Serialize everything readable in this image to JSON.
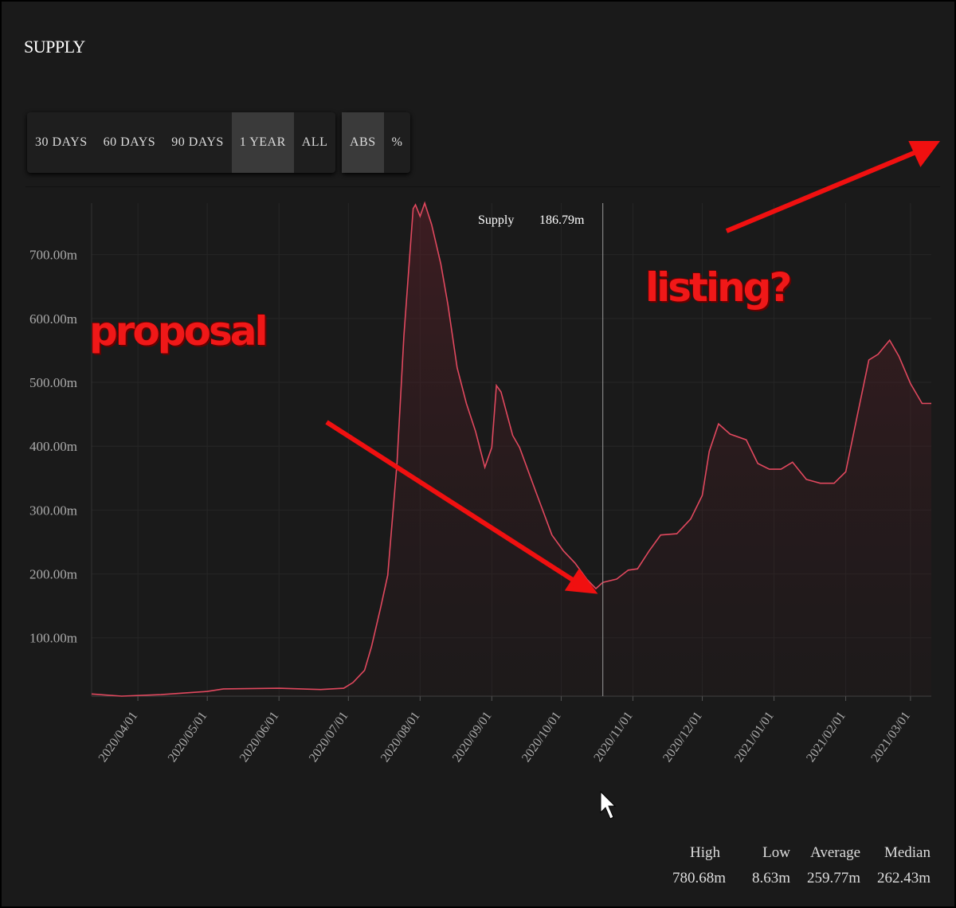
{
  "header": {
    "title": "SUPPLY"
  },
  "range_buttons": {
    "labels": [
      "30 DAYS",
      "60 DAYS",
      "90 DAYS",
      "1 YEAR",
      "ALL"
    ],
    "selected": 3
  },
  "mode_buttons": {
    "labels": [
      "ABS",
      "%"
    ],
    "selected": 0
  },
  "chart_data": {
    "type": "line",
    "x": [
      "2020/03/12",
      "2020/03/25",
      "2020/04/11",
      "2020/05/01",
      "2020/05/08",
      "2020/06/01",
      "2020/06/19",
      "2020/06/29",
      "2020/07/03",
      "2020/07/08",
      "2020/07/11",
      "2020/07/15",
      "2020/07/18",
      "2020/07/22",
      "2020/07/25",
      "2020/07/29",
      "2020/07/30",
      "2020/08/01",
      "2020/08/03",
      "2020/08/06",
      "2020/08/10",
      "2020/08/13",
      "2020/08/17",
      "2020/08/21",
      "2020/08/25",
      "2020/08/29",
      "2020/09/01",
      "2020/09/03",
      "2020/09/05",
      "2020/09/10",
      "2020/09/13",
      "2020/09/20",
      "2020/09/27",
      "2020/10/02",
      "2020/10/07",
      "2020/10/12",
      "2020/10/16",
      "2020/10/19",
      "2020/10/25",
      "2020/10/30",
      "2020/11/03",
      "2020/11/08",
      "2020/11/13",
      "2020/11/20",
      "2020/11/26",
      "2020/12/01",
      "2020/12/04",
      "2020/12/08",
      "2020/12/13",
      "2020/12/20",
      "2020/12/25",
      "2020/12/30",
      "2021/01/04",
      "2021/01/09",
      "2021/01/15",
      "2021/01/21",
      "2021/01/27",
      "2021/02/01",
      "2021/02/06",
      "2021/02/11",
      "2021/02/15",
      "2021/02/20",
      "2021/02/24",
      "2021/03/01",
      "2021/03/06",
      "2021/03/10"
    ],
    "series": [
      {
        "name": "Supply",
        "color": "#e0485e",
        "values": [
          12,
          8.63,
          11,
          16,
          20,
          21,
          19,
          21,
          30,
          49,
          86,
          148,
          198,
          373,
          573,
          772,
          778,
          760,
          780.68,
          747,
          685,
          622,
          523,
          467,
          423,
          367,
          398,
          495,
          485,
          417,
          398,
          329,
          261,
          236,
          217,
          192,
          177,
          186.79,
          192,
          206,
          208,
          236,
          261,
          263,
          286,
          323,
          392,
          435,
          419,
          410,
          373,
          364,
          364,
          375,
          348,
          342,
          342,
          360,
          448,
          535,
          544,
          566,
          541,
          498,
          467,
          467
        ]
      }
    ],
    "xlim": [
      "2020/03/12",
      "2021/03/10"
    ],
    "xticks": [
      "2020/04/01",
      "2020/05/01",
      "2020/06/01",
      "2020/07/01",
      "2020/08/01",
      "2020/09/01",
      "2020/10/01",
      "2020/11/01",
      "2020/12/01",
      "2021/01/01",
      "2021/02/01",
      "2021/03/01"
    ],
    "ylim": [
      8.63,
      780.68
    ],
    "yticks": [
      {
        "value": 100,
        "label": "100.00m"
      },
      {
        "value": 200,
        "label": "200.00m"
      },
      {
        "value": 300,
        "label": "300.00m"
      },
      {
        "value": 400,
        "label": "400.00m"
      },
      {
        "value": 500,
        "label": "500.00m"
      },
      {
        "value": 600,
        "label": "600.00m"
      },
      {
        "value": 700,
        "label": "700.00m"
      }
    ],
    "grid": true,
    "tooltip": {
      "x": "2020/10/19",
      "name": "Supply",
      "value": 186.79,
      "value_label": "186.79m"
    }
  },
  "stats": [
    {
      "label": "High",
      "value": "780.68m"
    },
    {
      "label": "Low",
      "value": "8.63m"
    },
    {
      "label": "Average",
      "value": "259.77m"
    },
    {
      "label": "Median",
      "value": "262.43m"
    }
  ],
  "annotations": [
    "proposal",
    "listing?"
  ]
}
